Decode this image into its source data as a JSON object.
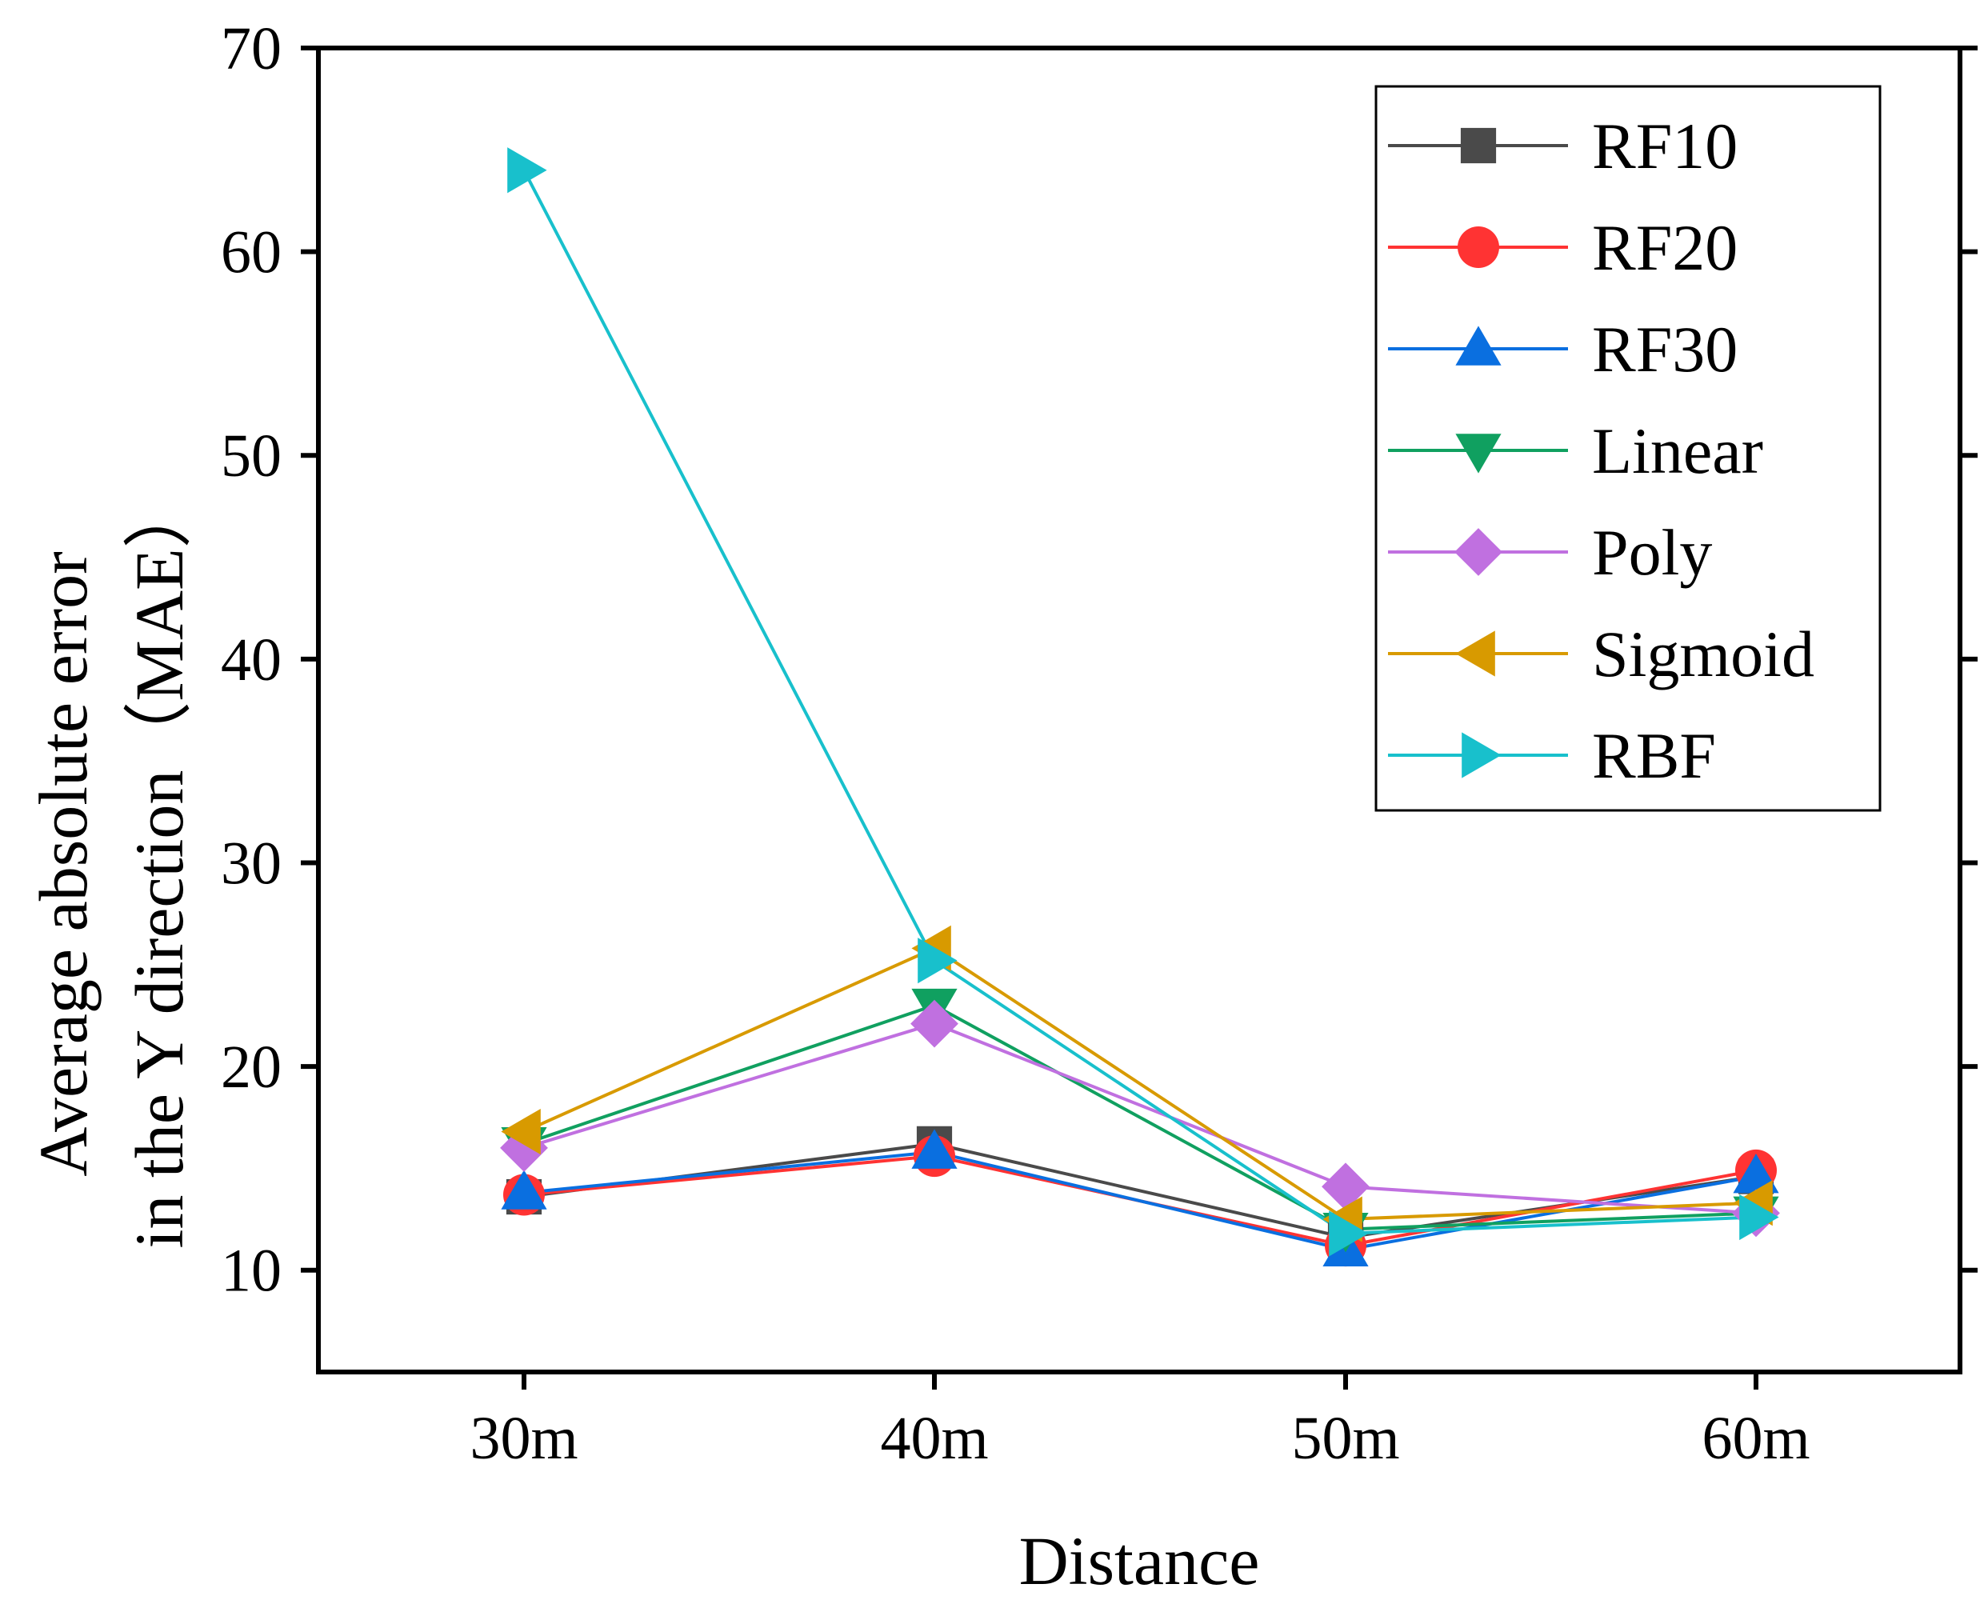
{
  "chart_data": {
    "type": "line",
    "title": "",
    "xlabel": "Distance",
    "ylabel_line1": "Average absolute error",
    "ylabel_line2": "in the Y direction（MAE）",
    "categories": [
      "30m",
      "40m",
      "50m",
      "60m"
    ],
    "ylim": [
      5,
      70
    ],
    "yticks": [
      10,
      20,
      30,
      40,
      50,
      60,
      70
    ],
    "grid": false,
    "legend_position": "top-right",
    "series": [
      {
        "name": "RF10",
        "color": "#4a4a4a",
        "marker": "square",
        "values": [
          13.6,
          16.2,
          11.6,
          14.6
        ]
      },
      {
        "name": "RF20",
        "color": "#ff3333",
        "marker": "circle",
        "values": [
          13.7,
          15.6,
          11.2,
          14.9
        ]
      },
      {
        "name": "RF30",
        "color": "#0a6fe0",
        "marker": "triangle-up",
        "values": [
          13.8,
          15.8,
          11.0,
          14.6
        ]
      },
      {
        "name": "Linear",
        "color": "#10a060",
        "marker": "triangle-down",
        "values": [
          16.2,
          23.0,
          12.0,
          12.8
        ]
      },
      {
        "name": "Poly",
        "color": "#c070e0",
        "marker": "diamond",
        "values": [
          16.0,
          22.1,
          14.1,
          12.8
        ]
      },
      {
        "name": "Sigmoid",
        "color": "#d89a00",
        "marker": "triangle-left",
        "values": [
          16.8,
          25.8,
          12.5,
          13.3
        ]
      },
      {
        "name": "RBF",
        "color": "#18c0cc",
        "marker": "triangle-right",
        "values": [
          64.0,
          25.2,
          11.8,
          12.6
        ]
      }
    ]
  }
}
